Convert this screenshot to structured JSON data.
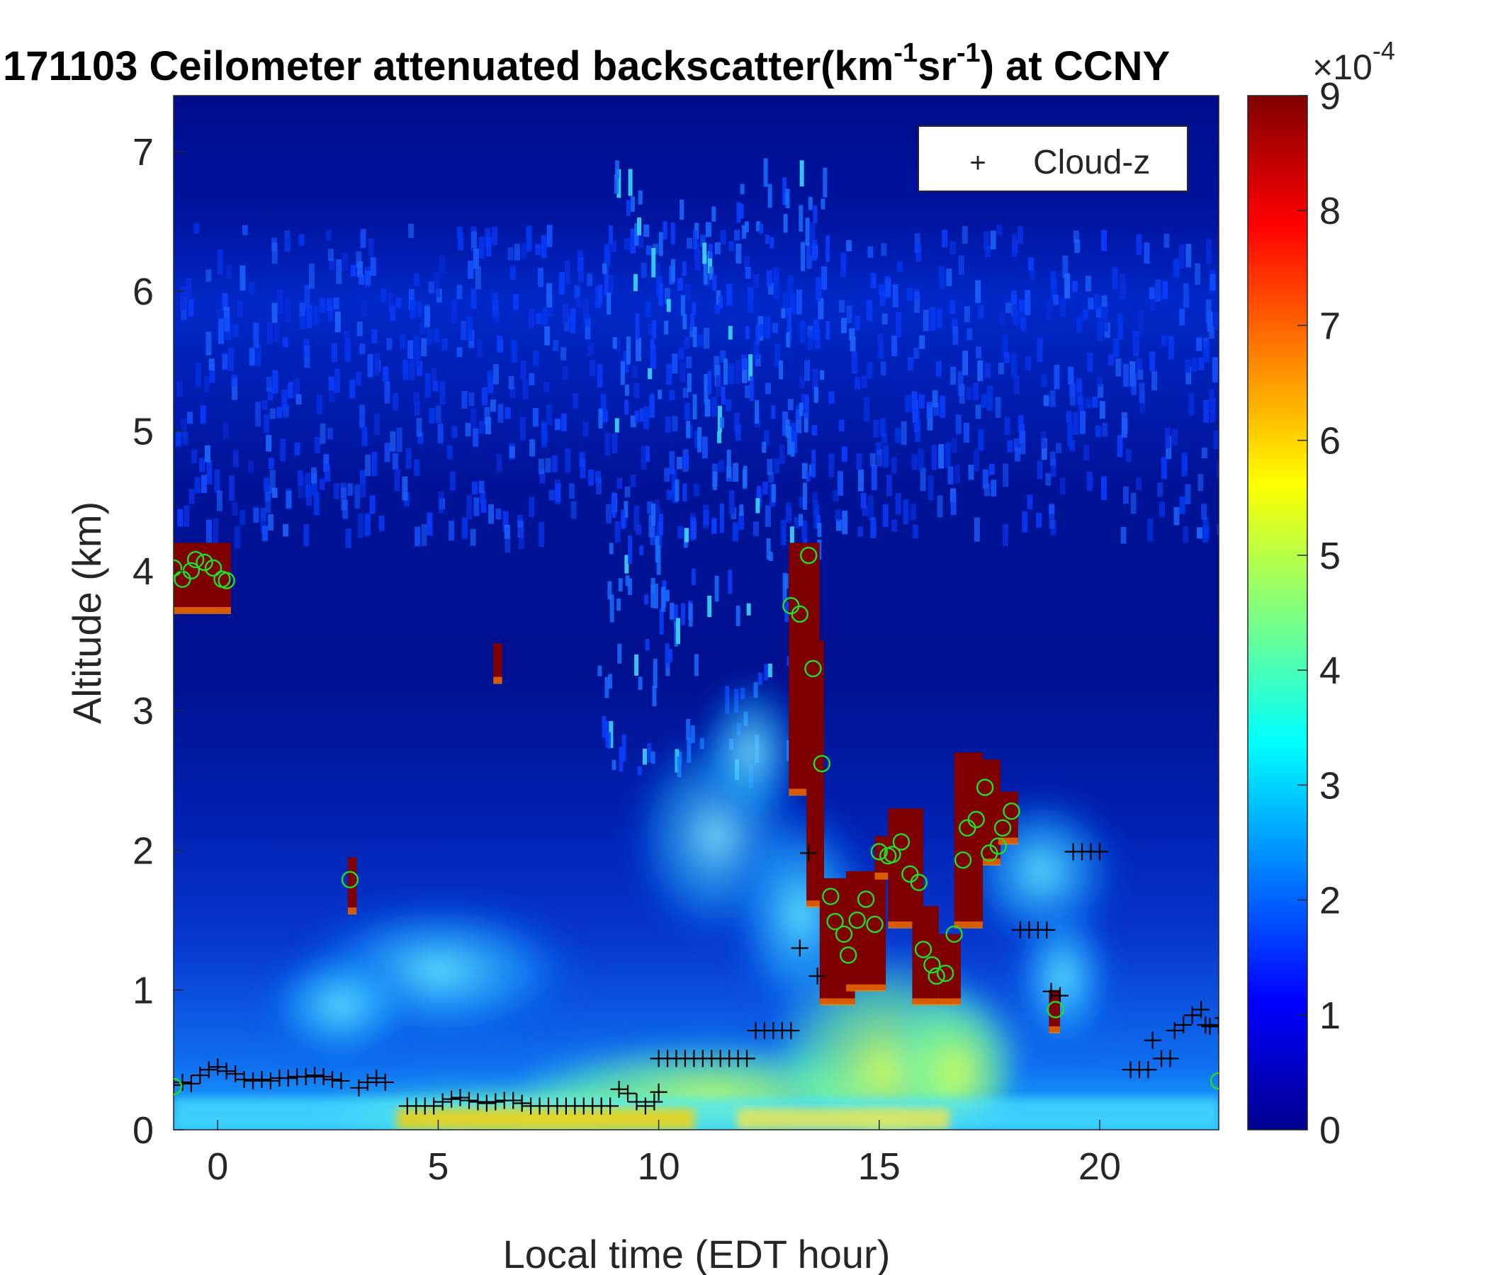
{
  "chart_data": {
    "type": "heatmap",
    "title": "171103 Ceilometer attenuated backscatter(km",
    "title_sup1": "-1",
    "title_mid": "sr",
    "title_sup2": "-1",
    "title_end": ") at CCNY",
    "xlabel": "Local time (EDT hour)",
    "ylabel": "Altitude (km)",
    "xlim": [
      -1,
      22.7
    ],
    "ylim": [
      0,
      7.4
    ],
    "xticks": [
      0,
      5,
      10,
      15,
      20
    ],
    "yticks": [
      0,
      1,
      2,
      3,
      4,
      5,
      6,
      7
    ],
    "colorbar": {
      "colormap": "jet",
      "range": [
        0,
        9
      ],
      "ticks": [
        0,
        1,
        2,
        3,
        4,
        5,
        6,
        7,
        8,
        9
      ],
      "exponent_base": "×10",
      "exponent": "-4"
    },
    "legend": {
      "position": "top-right",
      "entries": [
        {
          "marker": "+",
          "label": "Cloud-z"
        }
      ]
    },
    "cloud_z": [
      [
        -1.0,
        0.32
      ],
      [
        -0.8,
        0.34
      ],
      [
        -0.6,
        0.33
      ],
      [
        -0.4,
        0.39
      ],
      [
        -0.2,
        0.43
      ],
      [
        0.0,
        0.45
      ],
      [
        0.2,
        0.42
      ],
      [
        0.4,
        0.4
      ],
      [
        0.6,
        0.36
      ],
      [
        0.8,
        0.35
      ],
      [
        1.0,
        0.36
      ],
      [
        1.2,
        0.35
      ],
      [
        1.4,
        0.37
      ],
      [
        1.6,
        0.37
      ],
      [
        1.8,
        0.38
      ],
      [
        2.0,
        0.38
      ],
      [
        2.2,
        0.39
      ],
      [
        2.4,
        0.38
      ],
      [
        2.6,
        0.36
      ],
      [
        2.8,
        0.35
      ],
      [
        3.2,
        0.3
      ],
      [
        3.4,
        0.34
      ],
      [
        3.6,
        0.37
      ],
      [
        3.8,
        0.34
      ],
      [
        4.3,
        0.17
      ],
      [
        4.5,
        0.17
      ],
      [
        4.7,
        0.17
      ],
      [
        4.9,
        0.17
      ],
      [
        5.1,
        0.2
      ],
      [
        5.3,
        0.22
      ],
      [
        5.5,
        0.23
      ],
      [
        5.7,
        0.21
      ],
      [
        5.9,
        0.2
      ],
      [
        6.1,
        0.19
      ],
      [
        6.3,
        0.2
      ],
      [
        6.5,
        0.21
      ],
      [
        6.7,
        0.21
      ],
      [
        6.9,
        0.19
      ],
      [
        7.1,
        0.17
      ],
      [
        7.3,
        0.17
      ],
      [
        7.5,
        0.17
      ],
      [
        7.7,
        0.17
      ],
      [
        7.9,
        0.17
      ],
      [
        8.1,
        0.17
      ],
      [
        8.3,
        0.17
      ],
      [
        8.5,
        0.17
      ],
      [
        8.7,
        0.17
      ],
      [
        8.9,
        0.17
      ],
      [
        9.1,
        0.29
      ],
      [
        9.3,
        0.26
      ],
      [
        9.5,
        0.2
      ],
      [
        9.7,
        0.17
      ],
      [
        9.9,
        0.2
      ],
      [
        10.0,
        0.27
      ],
      [
        10.0,
        0.51
      ],
      [
        10.2,
        0.51
      ],
      [
        10.4,
        0.51
      ],
      [
        10.6,
        0.51
      ],
      [
        10.8,
        0.51
      ],
      [
        11.0,
        0.51
      ],
      [
        11.2,
        0.51
      ],
      [
        11.4,
        0.51
      ],
      [
        11.6,
        0.51
      ],
      [
        11.8,
        0.51
      ],
      [
        12.0,
        0.51
      ],
      [
        12.2,
        0.71
      ],
      [
        12.4,
        0.71
      ],
      [
        12.6,
        0.71
      ],
      [
        12.8,
        0.71
      ],
      [
        13.0,
        0.71
      ],
      [
        13.2,
        1.3
      ],
      [
        13.4,
        1.98
      ],
      [
        13.6,
        1.1
      ],
      [
        18.2,
        1.43
      ],
      [
        18.4,
        1.43
      ],
      [
        18.6,
        1.43
      ],
      [
        18.8,
        1.43
      ],
      [
        18.9,
        0.99
      ],
      [
        19.1,
        0.96
      ],
      [
        19.4,
        1.99
      ],
      [
        19.6,
        1.99
      ],
      [
        19.8,
        1.99
      ],
      [
        20.0,
        1.99
      ],
      [
        20.7,
        0.43
      ],
      [
        20.9,
        0.43
      ],
      [
        21.1,
        0.43
      ],
      [
        21.2,
        0.64
      ],
      [
        21.4,
        0.51
      ],
      [
        21.6,
        0.51
      ],
      [
        21.7,
        0.71
      ],
      [
        21.9,
        0.75
      ],
      [
        22.1,
        0.82
      ],
      [
        22.3,
        0.86
      ],
      [
        22.4,
        0.75
      ],
      [
        22.5,
        0.74
      ],
      [
        22.7,
        0.75
      ],
      [
        22.8,
        0.8
      ]
    ],
    "cloud_circles": [
      [
        -1.0,
        4.02
      ],
      [
        -0.8,
        3.94
      ],
      [
        -0.6,
        4.0
      ],
      [
        -0.5,
        4.08
      ],
      [
        -0.3,
        4.06
      ],
      [
        -0.1,
        4.02
      ],
      [
        0.1,
        3.94
      ],
      [
        0.2,
        3.93
      ],
      [
        -1.0,
        0.31
      ],
      [
        3.0,
        1.79
      ],
      [
        13.0,
        3.75
      ],
      [
        13.2,
        3.69
      ],
      [
        13.4,
        4.11
      ],
      [
        13.5,
        3.3
      ],
      [
        13.7,
        2.62
      ],
      [
        13.9,
        1.67
      ],
      [
        14.0,
        1.49
      ],
      [
        14.2,
        1.4
      ],
      [
        14.3,
        1.25
      ],
      [
        14.5,
        1.5
      ],
      [
        14.7,
        1.65
      ],
      [
        14.9,
        1.47
      ],
      [
        15.0,
        1.99
      ],
      [
        15.2,
        1.96
      ],
      [
        15.3,
        1.97
      ],
      [
        15.5,
        2.06
      ],
      [
        15.7,
        1.83
      ],
      [
        15.9,
        1.77
      ],
      [
        16.0,
        1.29
      ],
      [
        16.2,
        1.18
      ],
      [
        16.3,
        1.1
      ],
      [
        16.5,
        1.12
      ],
      [
        16.7,
        1.4
      ],
      [
        16.9,
        1.93
      ],
      [
        17.0,
        2.16
      ],
      [
        17.2,
        2.22
      ],
      [
        17.4,
        2.45
      ],
      [
        17.5,
        1.98
      ],
      [
        17.7,
        2.03
      ],
      [
        17.8,
        2.16
      ],
      [
        18.0,
        2.28
      ],
      [
        19.0,
        0.86
      ],
      [
        22.7,
        0.35
      ]
    ],
    "saturated_clouds": [
      {
        "x0": -1.0,
        "x1": 0.3,
        "bottom": 3.7,
        "top": 4.2
      },
      {
        "x0": 2.95,
        "x1": 3.15,
        "bottom": 1.55,
        "top": 1.95
      },
      {
        "x0": 6.25,
        "x1": 6.45,
        "bottom": 3.2,
        "top": 3.48
      },
      {
        "x0": 12.95,
        "x1": 13.65,
        "bottom": 2.4,
        "top": 4.2
      },
      {
        "x0": 13.35,
        "x1": 13.75,
        "bottom": 1.6,
        "top": 3.5
      },
      {
        "x0": 13.65,
        "x1": 14.45,
        "bottom": 0.9,
        "top": 1.8
      },
      {
        "x0": 14.25,
        "x1": 15.15,
        "bottom": 1.0,
        "top": 1.85
      },
      {
        "x0": 14.9,
        "x1": 15.8,
        "bottom": 1.8,
        "top": 2.1
      },
      {
        "x0": 15.2,
        "x1": 16.0,
        "bottom": 1.45,
        "top": 2.3
      },
      {
        "x0": 15.75,
        "x1": 16.35,
        "bottom": 0.9,
        "top": 1.6
      },
      {
        "x0": 16.35,
        "x1": 16.85,
        "bottom": 0.9,
        "top": 1.4
      },
      {
        "x0": 16.7,
        "x1": 17.35,
        "bottom": 1.45,
        "top": 2.7
      },
      {
        "x0": 17.35,
        "x1": 17.75,
        "bottom": 1.9,
        "top": 2.65
      },
      {
        "x0": 17.7,
        "x1": 18.15,
        "bottom": 2.05,
        "top": 2.42
      },
      {
        "x0": 18.85,
        "x1": 19.1,
        "bottom": 0.7,
        "top": 1.0
      }
    ]
  }
}
